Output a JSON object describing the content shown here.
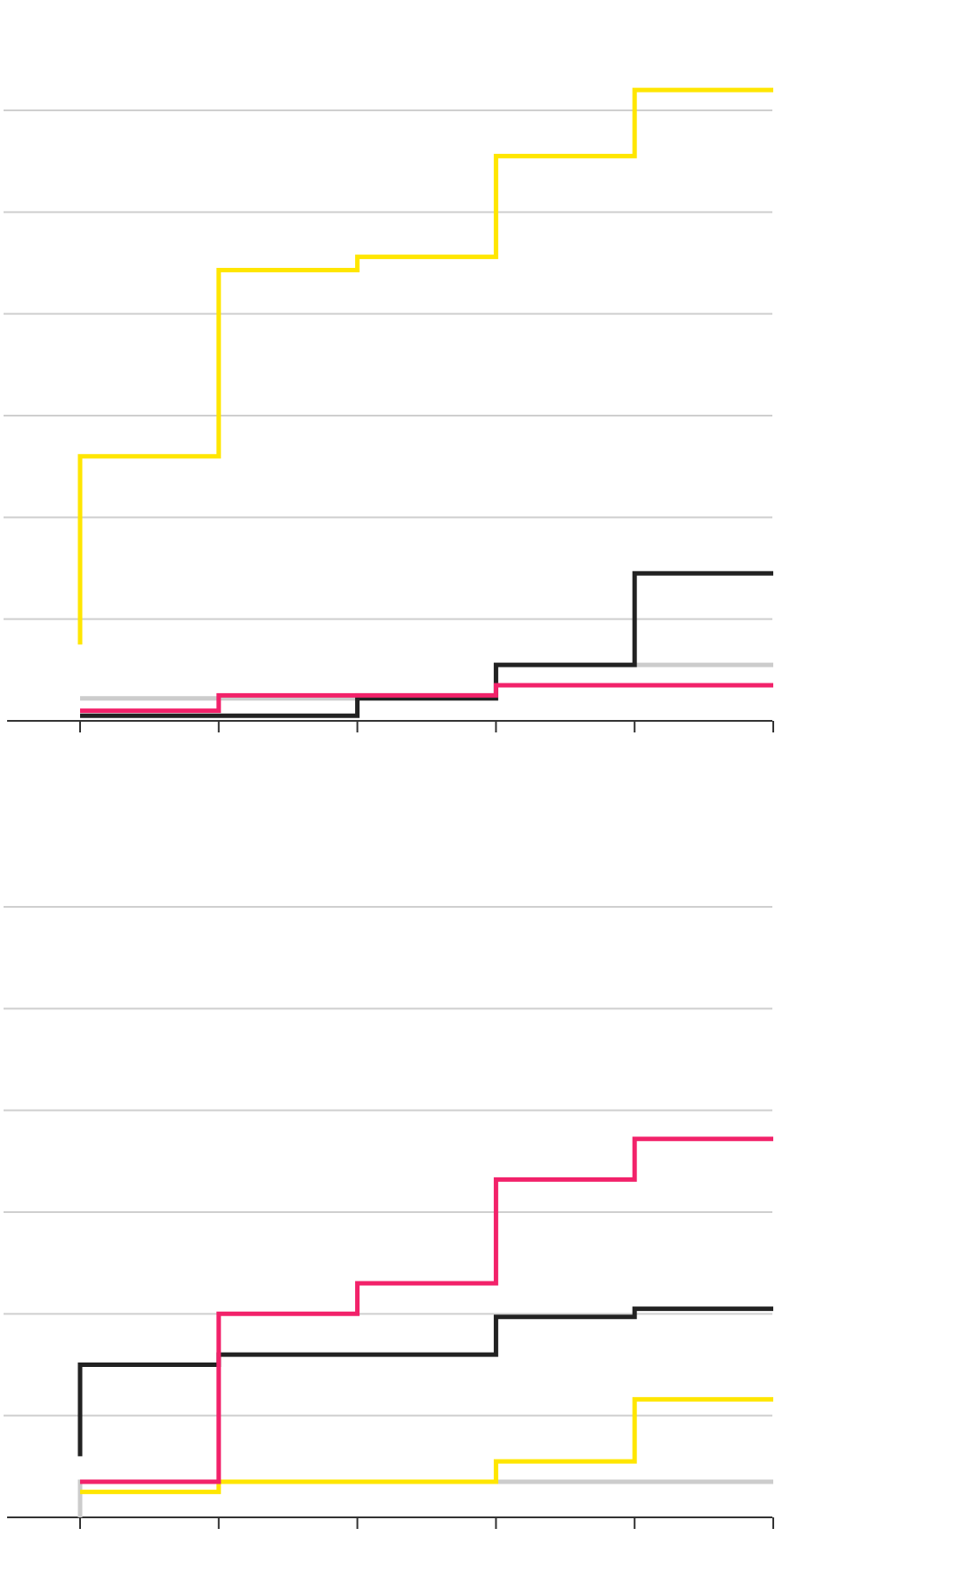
{
  "chart_data": [
    {
      "type": "line",
      "step": true,
      "x": [
        0,
        1,
        2,
        3,
        4,
        5
      ],
      "ylim": [
        0,
        60
      ],
      "yticks": [
        0,
        10,
        20,
        30,
        40,
        50,
        60
      ],
      "grid": true,
      "series": [
        {
          "color": "#cccccc",
          "values": [
            2.2,
            2.2,
            2.5,
            5.5,
            5.5,
            5.5
          ]
        },
        {
          "color": "#222222",
          "values": [
            0.5,
            0.5,
            2.2,
            5.5,
            14.5,
            14.5
          ]
        },
        {
          "color": "#f2226a",
          "values": [
            1.0,
            2.5,
            2.5,
            3.5,
            3.5,
            3.5
          ]
        },
        {
          "color": "#ffe600",
          "start": 7.5,
          "values": [
            26,
            44.3,
            45.6,
            55.5,
            62,
            62
          ]
        }
      ]
    },
    {
      "type": "line",
      "step": true,
      "x": [
        0,
        1,
        2,
        3,
        4,
        5
      ],
      "ylim": [
        0,
        60
      ],
      "yticks": [
        0,
        10,
        20,
        30,
        40,
        50,
        60
      ],
      "grid": true,
      "series": [
        {
          "color": "#cccccc",
          "start": 0,
          "values": [
            3.5,
            3.5,
            3.5,
            3.5,
            3.5,
            3.5
          ]
        },
        {
          "color": "#222222",
          "start": 6,
          "values": [
            15,
            16,
            16,
            19.7,
            20.5,
            20.5
          ]
        },
        {
          "color": "#ffe600",
          "values": [
            2.5,
            3.5,
            3.5,
            5.5,
            11.6,
            11.6
          ]
        },
        {
          "color": "#f2226a",
          "values": [
            3.5,
            20,
            23,
            33.2,
            37.2,
            37.2
          ]
        }
      ]
    }
  ]
}
